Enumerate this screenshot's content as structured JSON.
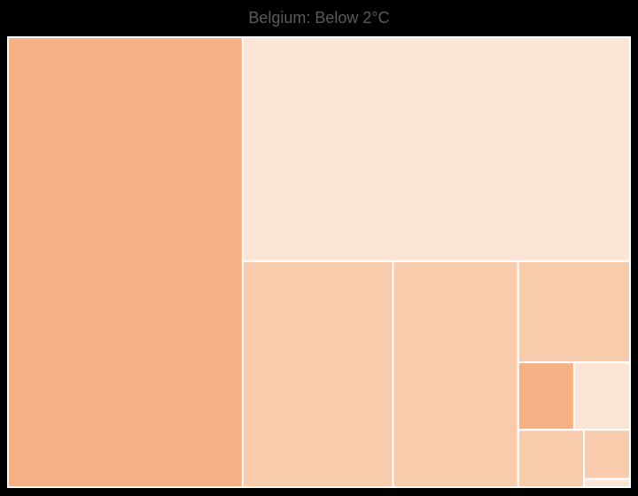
{
  "chart_data": {
    "type": "treemap",
    "title": "Belgium: Below 2°C",
    "tiles": [
      {
        "value": 280,
        "color": "#f4b183"
      },
      {
        "value": 230,
        "color": "#fbe5d6"
      },
      {
        "value": 90,
        "color": "#f8cbad"
      },
      {
        "value": 75,
        "color": "#f8cbad"
      },
      {
        "value": 30,
        "color": "#f8cbad"
      },
      {
        "value": 10,
        "color": "#f4b183"
      },
      {
        "value": 10,
        "color": "#fbe5d6"
      },
      {
        "value": 10,
        "color": "#f8cbad"
      },
      {
        "value": 6,
        "color": "#f8cbad"
      },
      {
        "value": 1,
        "color": "#fbe5d6"
      }
    ]
  }
}
